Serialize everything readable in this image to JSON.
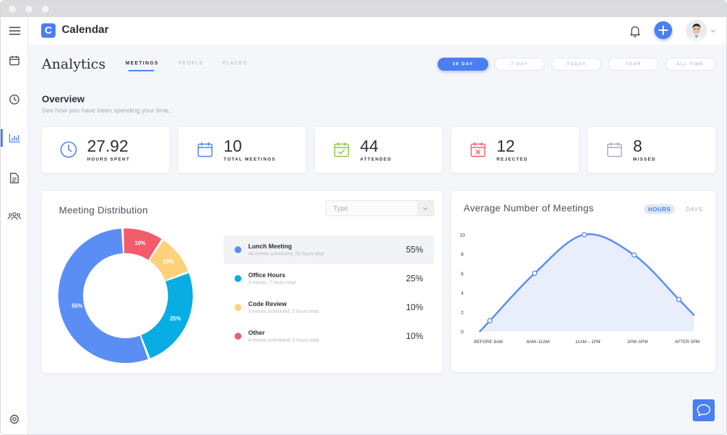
{
  "app": {
    "logo_letter": "C",
    "name": "Calendar"
  },
  "sidebar": {
    "items": [
      {
        "icon": "menu-icon"
      },
      {
        "icon": "calendar-icon"
      },
      {
        "icon": "clock-icon"
      },
      {
        "icon": "analytics-icon",
        "active": true
      },
      {
        "icon": "document-icon"
      },
      {
        "icon": "people-icon"
      },
      {
        "icon": "gear-icon"
      }
    ]
  },
  "header": {
    "bell_icon": "bell-icon",
    "add_icon": "plus-icon",
    "avatar_icon": "avatar",
    "caret_icon": "chevron-down-icon"
  },
  "page": {
    "title": "Analytics",
    "tabs": [
      {
        "label": "MEETINGS",
        "active": true
      },
      {
        "label": "PEOPLE",
        "active": false
      },
      {
        "label": "PLACES",
        "active": false
      }
    ],
    "ranges": [
      {
        "label": "30 DAY",
        "active": true
      },
      {
        "label": "7 DAY",
        "active": false
      },
      {
        "label": "TODAY",
        "active": false
      },
      {
        "label": "YEAR",
        "active": false
      },
      {
        "label": "ALL TIME",
        "active": false
      }
    ]
  },
  "overview": {
    "title": "Overview",
    "subtitle": "See how you have been spending your time.",
    "stats": [
      {
        "value": "27.92",
        "label": "HOURS SPENT",
        "icon": "clock-icon",
        "color": "#4a7ff2"
      },
      {
        "value": "10",
        "label": "TOTAL MEETINGS",
        "icon": "calendar-icon",
        "color": "#4a7ff2"
      },
      {
        "value": "44",
        "label": "ATTENDED",
        "icon": "calendar-check-icon",
        "color": "#8cc63f"
      },
      {
        "value": "12",
        "label": "REJECTED",
        "icon": "calendar-x-icon",
        "color": "#f25c6b"
      },
      {
        "value": "8",
        "label": "MISSED",
        "icon": "calendar-icon",
        "color": "#a9acb5"
      }
    ]
  },
  "distribution": {
    "title": "Meeting Distribution",
    "type_placeholder": "Type",
    "items": [
      {
        "name": "Lunch Meeting",
        "detail": "40 events scheduled, 20 hours total",
        "pct": "55%",
        "color": "#5b8ef5"
      },
      {
        "name": "Office Hours",
        "detail": "4 events, 7 hours total",
        "pct": "25%",
        "color": "#08aee3"
      },
      {
        "name": "Code Review",
        "detail": "5 events scheduled, 5 hours total",
        "pct": "10%",
        "color": "#fdd27a"
      },
      {
        "name": "Other",
        "detail": "4 events scheduled, 5 hours total",
        "pct": "10%",
        "color": "#f25c6b"
      }
    ]
  },
  "chart_data": [
    {
      "type": "pie",
      "labels": [
        "Lunch Meeting",
        "Office Hours",
        "Code Review",
        "Other"
      ],
      "values": [
        55,
        25,
        10,
        10
      ],
      "data_labels": [
        "55%",
        "25%",
        "10%",
        "10%"
      ],
      "colors": [
        "#5b8ef5",
        "#08aee3",
        "#fdd27a",
        "#f25c6b"
      ]
    },
    {
      "type": "area",
      "title": "Average Number of Meetings",
      "units": [
        {
          "label": "HOURS",
          "active": true
        },
        {
          "label": "DAYS",
          "active": false
        }
      ],
      "categories": [
        "BEFORE 8AM",
        "8AM–11AM",
        "11AM – 1PM",
        "1PM–5PM",
        "AFTER 5PM"
      ],
      "y_ticks": [
        "0",
        "2",
        "4",
        "6",
        "8",
        "10"
      ],
      "ylim": [
        0,
        10
      ],
      "points": [
        {
          "x": -0.1,
          "y": 0,
          "marker": false
        },
        {
          "x": 0.1,
          "y": 1.1,
          "marker": true
        },
        {
          "x": 1.0,
          "y": 6.0,
          "marker": true
        },
        {
          "x": 2.0,
          "y": 10.0,
          "marker": true
        },
        {
          "x": 3.0,
          "y": 7.9,
          "marker": true
        },
        {
          "x": 3.9,
          "y": 3.3,
          "marker": true
        },
        {
          "x": 4.2,
          "y": 1.7,
          "marker": false
        }
      ],
      "line_color": "#5b8ef5",
      "fill_color": "#e8eefb"
    }
  ]
}
